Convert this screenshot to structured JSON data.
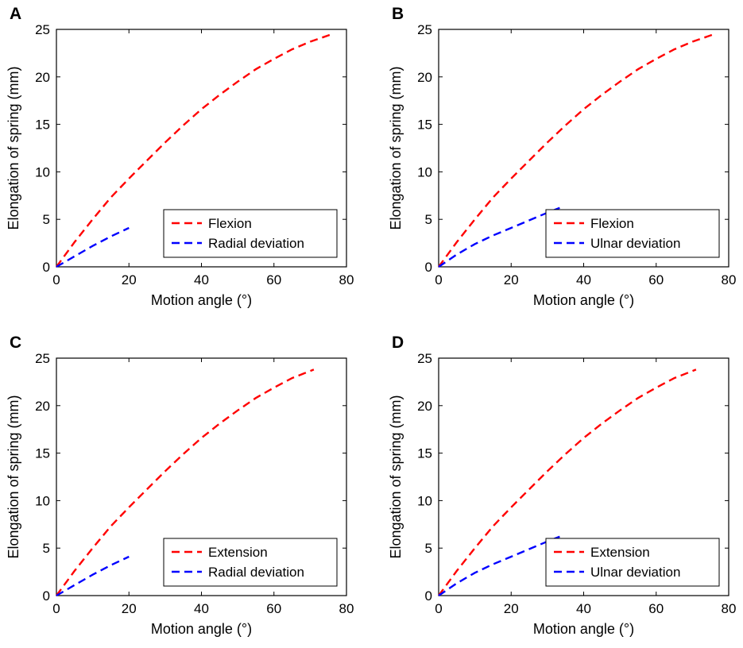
{
  "chart_data": [
    {
      "panel": "A",
      "type": "line",
      "xlabel": "Motion angle (°)",
      "ylabel": "Elongation of spring (mm)",
      "xlim": [
        0,
        80
      ],
      "ylim": [
        0,
        25
      ],
      "xticks": [
        0,
        20,
        40,
        60,
        80
      ],
      "yticks": [
        0,
        5,
        10,
        15,
        20,
        25
      ],
      "legend_position": "bottom-right",
      "series": [
        {
          "name": "Flexion",
          "color": "#ff0000",
          "style": "dashed",
          "x": [
            0,
            5,
            10,
            15,
            20,
            25,
            30,
            35,
            40,
            45,
            50,
            55,
            60,
            65,
            70,
            76
          ],
          "y": [
            0,
            2.6,
            5.0,
            7.3,
            9.3,
            11.2,
            13.1,
            14.9,
            16.6,
            18.1,
            19.5,
            20.8,
            21.9,
            22.9,
            23.7,
            24.5
          ]
        },
        {
          "name": "Radial deviation",
          "color": "#0000ff",
          "style": "dashed",
          "x": [
            0,
            5,
            10,
            15,
            20
          ],
          "y": [
            0,
            1.1,
            2.2,
            3.2,
            4.1
          ]
        }
      ]
    },
    {
      "panel": "B",
      "type": "line",
      "xlabel": "Motion angle (°)",
      "ylabel": "Elongation of spring (mm)",
      "xlim": [
        0,
        80
      ],
      "ylim": [
        0,
        25
      ],
      "xticks": [
        0,
        20,
        40,
        60,
        80
      ],
      "yticks": [
        0,
        5,
        10,
        15,
        20,
        25
      ],
      "legend_position": "bottom-right",
      "series": [
        {
          "name": "Flexion",
          "color": "#ff0000",
          "style": "dashed",
          "x": [
            0,
            5,
            10,
            15,
            20,
            25,
            30,
            35,
            40,
            45,
            50,
            55,
            60,
            65,
            70,
            76
          ],
          "y": [
            0,
            2.6,
            5.0,
            7.3,
            9.3,
            11.2,
            13.1,
            14.9,
            16.6,
            18.1,
            19.5,
            20.8,
            21.9,
            22.9,
            23.7,
            24.5
          ]
        },
        {
          "name": "Ulnar deviation",
          "color": "#0000ff",
          "style": "dashed",
          "x": [
            0,
            5,
            10,
            15,
            20,
            25,
            30,
            34
          ],
          "y": [
            0,
            1.3,
            2.4,
            3.3,
            4.1,
            4.9,
            5.7,
            6.3
          ]
        }
      ]
    },
    {
      "panel": "C",
      "type": "line",
      "xlabel": "Motion angle (°)",
      "ylabel": "Elongation of spring (mm)",
      "xlim": [
        0,
        80
      ],
      "ylim": [
        0,
        25
      ],
      "xticks": [
        0,
        20,
        40,
        60,
        80
      ],
      "yticks": [
        0,
        5,
        10,
        15,
        20,
        25
      ],
      "legend_position": "bottom-right",
      "series": [
        {
          "name": "Extension",
          "color": "#ff0000",
          "style": "dashed",
          "x": [
            0,
            5,
            10,
            15,
            20,
            25,
            30,
            35,
            40,
            45,
            50,
            55,
            60,
            65,
            71
          ],
          "y": [
            0,
            2.6,
            5.0,
            7.3,
            9.3,
            11.2,
            13.1,
            14.9,
            16.6,
            18.1,
            19.5,
            20.8,
            21.9,
            22.9,
            23.8
          ]
        },
        {
          "name": "Radial deviation",
          "color": "#0000ff",
          "style": "dashed",
          "x": [
            0,
            5,
            10,
            15,
            20
          ],
          "y": [
            0,
            1.1,
            2.2,
            3.2,
            4.1
          ]
        }
      ]
    },
    {
      "panel": "D",
      "type": "line",
      "xlabel": "Motion angle (°)",
      "ylabel": "Elongation of spring (mm)",
      "xlim": [
        0,
        80
      ],
      "ylim": [
        0,
        25
      ],
      "xticks": [
        0,
        20,
        40,
        60,
        80
      ],
      "yticks": [
        0,
        5,
        10,
        15,
        20,
        25
      ],
      "legend_position": "bottom-right",
      "series": [
        {
          "name": "Extension",
          "color": "#ff0000",
          "style": "dashed",
          "x": [
            0,
            5,
            10,
            15,
            20,
            25,
            30,
            35,
            40,
            45,
            50,
            55,
            60,
            65,
            71
          ],
          "y": [
            0,
            2.6,
            5.0,
            7.3,
            9.3,
            11.2,
            13.1,
            14.9,
            16.6,
            18.1,
            19.5,
            20.8,
            21.9,
            22.9,
            23.8
          ]
        },
        {
          "name": "Ulnar deviation",
          "color": "#0000ff",
          "style": "dashed",
          "x": [
            0,
            5,
            10,
            15,
            20,
            25,
            30,
            34
          ],
          "y": [
            0,
            1.3,
            2.4,
            3.3,
            4.1,
            4.9,
            5.7,
            6.3
          ]
        }
      ]
    }
  ]
}
